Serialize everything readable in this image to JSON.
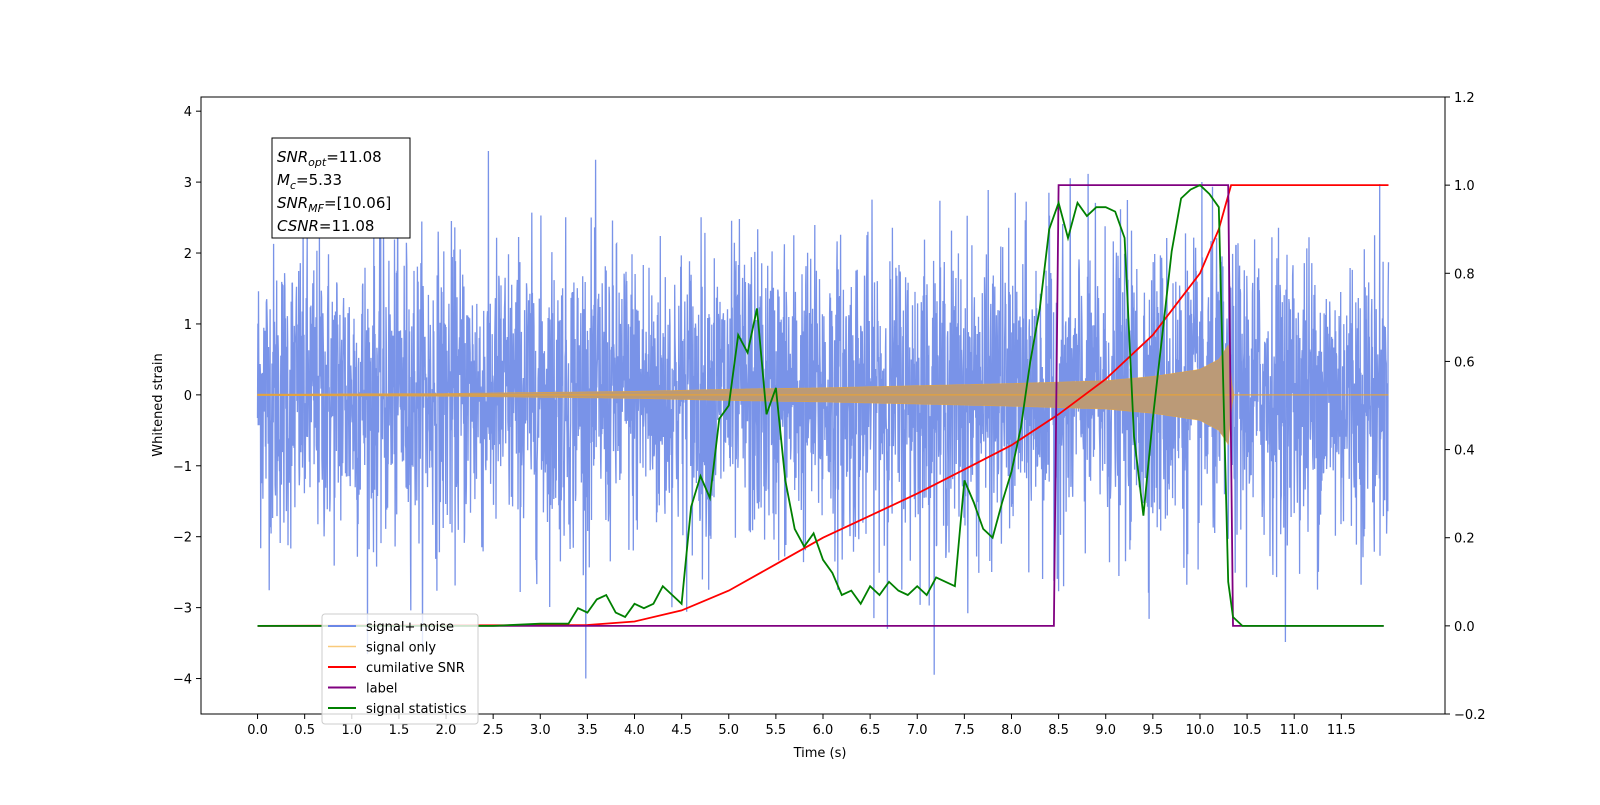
{
  "chart_data": {
    "type": "line",
    "xlabel": "Time (s)",
    "ylabel": "Whitened strain",
    "xlim": [
      -0.6,
      12.6
    ],
    "ylim": [
      -4.5,
      4.2
    ],
    "y2lim": [
      -0.2,
      1.2
    ],
    "x_ticks": [
      "0.0",
      "0.5",
      "1.0",
      "1.5",
      "2.0",
      "2.5",
      "3.0",
      "3.5",
      "4.0",
      "4.5",
      "5.0",
      "5.5",
      "6.0",
      "6.5",
      "7.0",
      "7.5",
      "8.0",
      "8.5",
      "9.0",
      "9.5",
      "10.0",
      "10.5",
      "11.0",
      "11.5"
    ],
    "y_ticks": [
      "4",
      "3",
      "2",
      "1",
      "0",
      "−1",
      "−2",
      "−3",
      "−4"
    ],
    "y2_ticks": [
      "1.2",
      "1.0",
      "0.8",
      "0.6",
      "0.4",
      "0.2",
      "0.0",
      "−0.2"
    ],
    "legend_location": "lower-left",
    "annotation": [
      {
        "base": "SNR",
        "sub": "opt",
        "rest": "=11.08"
      },
      {
        "base": "M",
        "sub": "c",
        "rest": "=5.33"
      },
      {
        "base": "SNR",
        "sub": "MF",
        "rest": "=[10.06]"
      },
      {
        "base": "CSNR",
        "sub": "",
        "rest": "=11.08"
      }
    ],
    "series": [
      {
        "name": "signal+ noise",
        "color": "#6a87e6",
        "axis": "left",
        "description": "whitened noise with std ~1, peaks up to ±3.8, span 0–12 s"
      },
      {
        "name": "signal only",
        "color": "#f5a623",
        "axis": "left",
        "description": "chirp amplitude envelope",
        "envelope_x": [
          0,
          2,
          4,
          5,
          6,
          7,
          8,
          9,
          9.5,
          10,
          10.2,
          10.3,
          10.35,
          10.4,
          12
        ],
        "envelope_y": [
          0.01,
          0.02,
          0.05,
          0.08,
          0.1,
          0.13,
          0.16,
          0.2,
          0.26,
          0.36,
          0.5,
          0.7,
          0.0,
          0.0,
          0.0
        ]
      },
      {
        "name": "cumilative SNR",
        "color": "#ff0000",
        "axis": "right",
        "x": [
          0,
          3.5,
          4,
          4.5,
          5,
          5.5,
          6,
          6.5,
          7,
          7.5,
          8,
          8.5,
          9,
          9.5,
          10,
          10.2,
          10.33,
          10.35,
          12
        ],
        "y": [
          0,
          0.002,
          0.01,
          0.035,
          0.08,
          0.14,
          0.2,
          0.25,
          0.3,
          0.355,
          0.41,
          0.48,
          0.56,
          0.66,
          0.8,
          0.9,
          1.0,
          1.0,
          1.0
        ]
      },
      {
        "name": "label",
        "color": "#800080",
        "axis": "right",
        "x": [
          0,
          8.45,
          8.5,
          10.3,
          10.35,
          11.95
        ],
        "y": [
          0,
          0,
          1,
          1,
          0,
          0
        ]
      },
      {
        "name": "signal statistics",
        "color": "#008000",
        "axis": "right",
        "x": [
          0,
          2.5,
          3.0,
          3.3,
          3.4,
          3.5,
          3.6,
          3.7,
          3.8,
          3.9,
          4.0,
          4.1,
          4.2,
          4.3,
          4.4,
          4.5,
          4.6,
          4.7,
          4.8,
          4.9,
          5.0,
          5.1,
          5.2,
          5.3,
          5.4,
          5.5,
          5.6,
          5.7,
          5.8,
          5.9,
          6.0,
          6.1,
          6.2,
          6.3,
          6.4,
          6.5,
          6.6,
          6.7,
          6.8,
          6.9,
          7.0,
          7.1,
          7.2,
          7.3,
          7.4,
          7.5,
          7.6,
          7.7,
          7.8,
          7.9,
          8.0,
          8.1,
          8.2,
          8.3,
          8.4,
          8.5,
          8.6,
          8.7,
          8.8,
          8.9,
          9.0,
          9.1,
          9.2,
          9.3,
          9.4,
          9.5,
          9.6,
          9.7,
          9.8,
          9.9,
          10.0,
          10.1,
          10.2,
          10.3,
          10.35,
          10.45,
          10.6,
          11.2,
          11.95
        ],
        "y": [
          0,
          0,
          0.005,
          0.005,
          0.04,
          0.03,
          0.06,
          0.07,
          0.03,
          0.02,
          0.05,
          0.04,
          0.05,
          0.09,
          0.07,
          0.05,
          0.27,
          0.34,
          0.29,
          0.47,
          0.5,
          0.66,
          0.62,
          0.72,
          0.48,
          0.54,
          0.33,
          0.22,
          0.18,
          0.21,
          0.15,
          0.12,
          0.07,
          0.08,
          0.05,
          0.09,
          0.07,
          0.1,
          0.08,
          0.07,
          0.09,
          0.07,
          0.11,
          0.1,
          0.09,
          0.33,
          0.28,
          0.22,
          0.2,
          0.28,
          0.35,
          0.45,
          0.6,
          0.72,
          0.9,
          0.96,
          0.88,
          0.96,
          0.93,
          0.95,
          0.95,
          0.94,
          0.88,
          0.43,
          0.25,
          0.47,
          0.66,
          0.85,
          0.97,
          0.99,
          1.0,
          0.98,
          0.95,
          0.1,
          0.02,
          0.0,
          0.0,
          0.0,
          0.0
        ]
      }
    ]
  }
}
